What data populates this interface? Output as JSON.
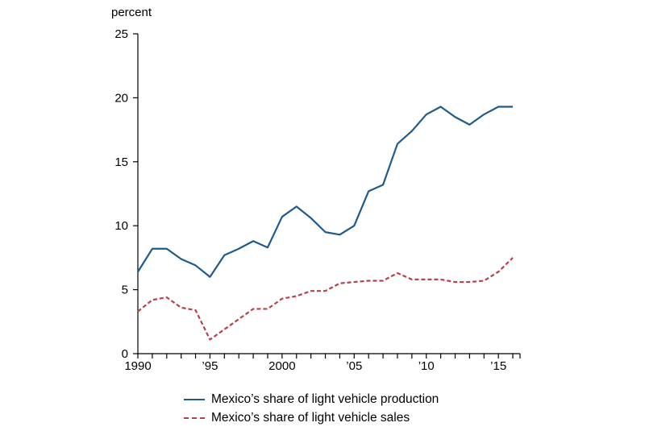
{
  "chart_data": {
    "type": "line",
    "title": "",
    "unit_label": "percent",
    "xlabel": "",
    "ylabel": "",
    "xlim": [
      1990,
      2016.5
    ],
    "ylim": [
      0,
      25
    ],
    "x_ticks": [
      {
        "value": 1990,
        "label": "1990"
      },
      {
        "value": 1995,
        "label": "’95"
      },
      {
        "value": 2000,
        "label": "2000"
      },
      {
        "value": 2005,
        "label": "’05"
      },
      {
        "value": 2010,
        "label": "’10"
      },
      {
        "value": 2015,
        "label": "’15"
      }
    ],
    "y_ticks": [
      {
        "value": 0,
        "label": "0"
      },
      {
        "value": 5,
        "label": "5"
      },
      {
        "value": 10,
        "label": "10"
      },
      {
        "value": 15,
        "label": "15"
      },
      {
        "value": 20,
        "label": "20"
      },
      {
        "value": 25,
        "label": "25"
      }
    ],
    "grid": false,
    "legend_position": "bottom",
    "x": [
      1990,
      1991,
      1992,
      1993,
      1994,
      1995,
      1996,
      1997,
      1998,
      1999,
      2000,
      2001,
      2002,
      2003,
      2004,
      2005,
      2006,
      2007,
      2008,
      2009,
      2010,
      2011,
      2012,
      2013,
      2014,
      2015,
      2016
    ],
    "series": [
      {
        "name": "Mexico’s share of light vehicle production",
        "color": "#1f5a8c",
        "dash": "solid",
        "values": [
          6.4,
          8.2,
          8.2,
          7.4,
          6.9,
          6.0,
          7.7,
          8.2,
          8.8,
          8.3,
          10.7,
          11.5,
          10.6,
          9.5,
          9.3,
          10.0,
          12.7,
          13.2,
          16.4,
          17.4,
          18.7,
          19.3,
          18.5,
          17.9,
          18.7,
          19.3,
          19.3
        ]
      },
      {
        "name": "Mexico’s share of light vehicle sales",
        "color": "#b5424b",
        "dash": "dashed",
        "values": [
          3.3,
          4.2,
          4.4,
          3.6,
          3.4,
          1.1,
          1.9,
          2.7,
          3.5,
          3.5,
          4.3,
          4.5,
          4.9,
          4.9,
          5.5,
          5.6,
          5.7,
          5.7,
          6.3,
          5.8,
          5.8,
          5.8,
          5.6,
          5.6,
          5.7,
          6.4,
          7.5
        ]
      }
    ]
  }
}
